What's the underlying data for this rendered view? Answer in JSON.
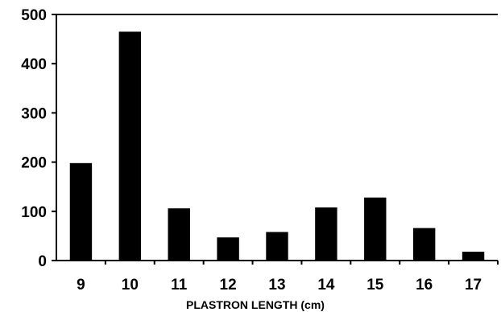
{
  "chart_data": {
    "type": "bar",
    "title": "",
    "xlabel": "PLASTRON LENGTH (cm)",
    "ylabel": "",
    "categories": [
      "9",
      "10",
      "11",
      "12",
      "13",
      "14",
      "15",
      "16",
      "17"
    ],
    "values": [
      198,
      465,
      106,
      47,
      58,
      108,
      128,
      66,
      18
    ],
    "ylim": [
      0,
      500
    ],
    "yticks": [
      "0",
      "100",
      "200",
      "300",
      "400",
      "500"
    ],
    "grid": false,
    "legend": "none",
    "bar_color": "#000000"
  }
}
